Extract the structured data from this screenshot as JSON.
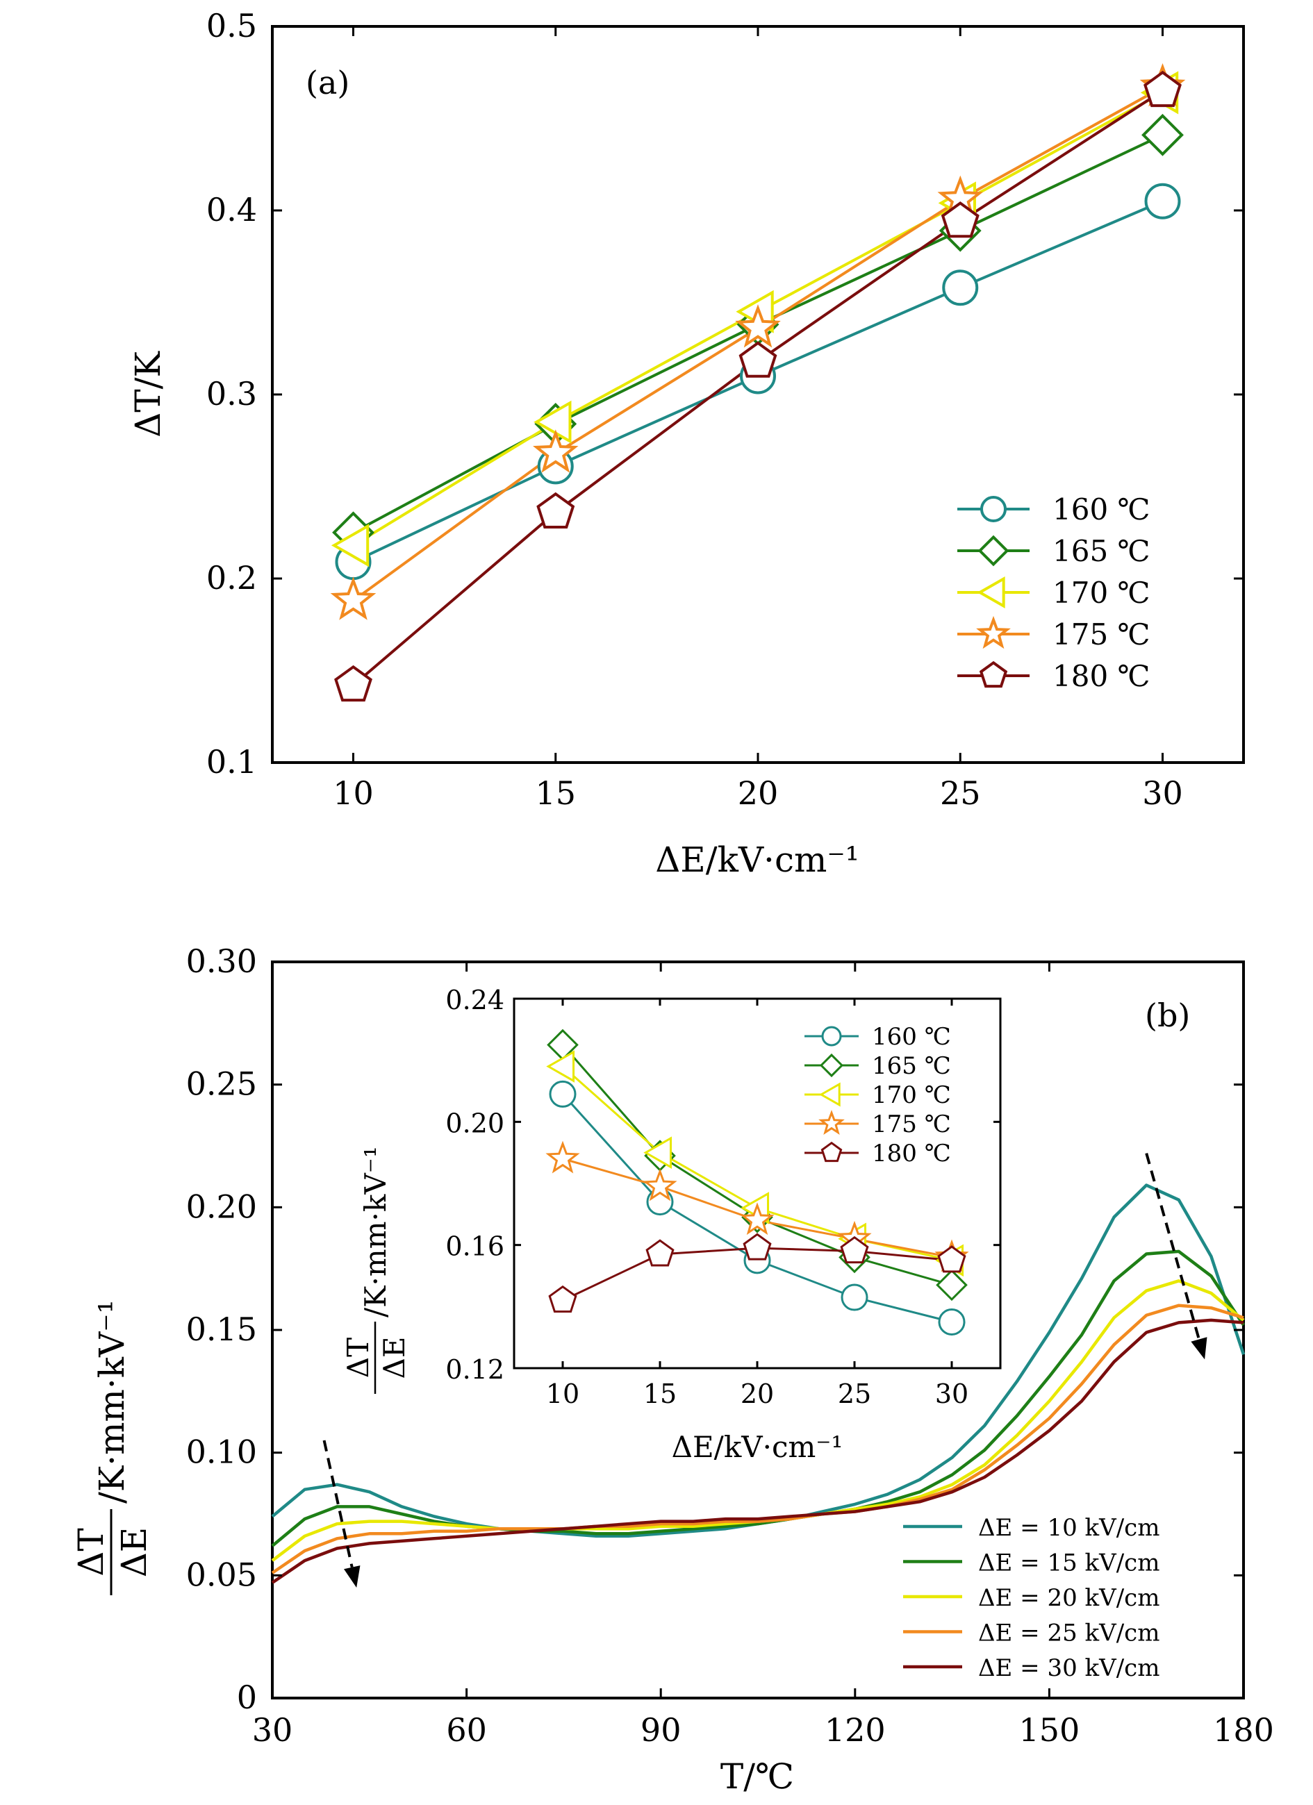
{
  "chart_data": [
    {
      "type": "line",
      "panel_label": "(a)",
      "xlabel": "ΔE/kV·cm⁻¹",
      "ylabel": "ΔT/K",
      "xlim": [
        8,
        32
      ],
      "ylim": [
        0.1,
        0.5
      ],
      "xticks": [
        "10",
        "15",
        "20",
        "25",
        "30"
      ],
      "yticks": [
        "0.1",
        "0.2",
        "0.3",
        "0.4",
        "0.5"
      ],
      "x": [
        10,
        15,
        20,
        25,
        30
      ],
      "legend_position": "lower-right",
      "series": [
        {
          "name": "160 ℃",
          "marker": "circle",
          "color": "#1f8a87",
          "values": [
            0.209,
            0.261,
            0.31,
            0.358,
            0.405
          ]
        },
        {
          "name": "165 ℃",
          "marker": "diamond",
          "color": "#1e7f16",
          "values": [
            0.225,
            0.284,
            0.338,
            0.389,
            0.441
          ]
        },
        {
          "name": "170 ℃",
          "marker": "triangle-left",
          "color": "#e8e800",
          "values": [
            0.218,
            0.285,
            0.345,
            0.404,
            0.464
          ]
        },
        {
          "name": "175 ℃",
          "marker": "star",
          "color": "#f28a1f",
          "values": [
            0.188,
            0.268,
            0.336,
            0.406,
            0.467
          ]
        },
        {
          "name": "180 ℃",
          "marker": "pentagon",
          "color": "#7a0d0d",
          "values": [
            0.142,
            0.236,
            0.318,
            0.394,
            0.465
          ]
        }
      ]
    },
    {
      "type": "line",
      "panel_label": "(b)",
      "xlabel": "T/℃",
      "ylabel_num": "ΔT",
      "ylabel_den": "ΔE",
      "ylabel_unit": "/K·mm·kV⁻¹",
      "xlim": [
        30,
        180
      ],
      "ylim": [
        0,
        0.3
      ],
      "xticks": [
        "30",
        "60",
        "90",
        "120",
        "150",
        "180"
      ],
      "yticks": [
        "0",
        "0.05",
        "0.10",
        "0.15",
        "0.20",
        "0.25",
        "0.30"
      ],
      "legend_position": "lower-right",
      "x": [
        30,
        35,
        40,
        45,
        50,
        55,
        60,
        65,
        70,
        75,
        80,
        85,
        90,
        95,
        100,
        105,
        110,
        115,
        120,
        125,
        130,
        135,
        140,
        145,
        150,
        155,
        160,
        165,
        170,
        175,
        180
      ],
      "series": [
        {
          "name": "ΔE = 10 kV/cm",
          "color": "#1f8a87",
          "values": [
            0.074,
            0.085,
            0.087,
            0.084,
            0.078,
            0.074,
            0.071,
            0.069,
            0.068,
            0.067,
            0.066,
            0.066,
            0.067,
            0.068,
            0.069,
            0.071,
            0.073,
            0.076,
            0.079,
            0.083,
            0.089,
            0.098,
            0.111,
            0.129,
            0.149,
            0.171,
            0.196,
            0.209,
            0.203,
            0.18,
            0.14
          ]
        },
        {
          "name": "ΔE = 15 kV/cm",
          "color": "#1e7f16",
          "values": [
            0.062,
            0.073,
            0.078,
            0.078,
            0.075,
            0.072,
            0.07,
            0.069,
            0.068,
            0.068,
            0.067,
            0.067,
            0.068,
            0.069,
            0.07,
            0.071,
            0.073,
            0.075,
            0.077,
            0.08,
            0.084,
            0.091,
            0.101,
            0.115,
            0.131,
            0.148,
            0.17,
            0.181,
            0.182,
            0.172,
            0.152
          ]
        },
        {
          "name": "ΔE = 20 kV/cm",
          "color": "#e8e800",
          "values": [
            0.056,
            0.066,
            0.071,
            0.072,
            0.072,
            0.071,
            0.07,
            0.069,
            0.069,
            0.069,
            0.069,
            0.069,
            0.07,
            0.07,
            0.071,
            0.072,
            0.073,
            0.075,
            0.077,
            0.079,
            0.082,
            0.087,
            0.095,
            0.107,
            0.121,
            0.137,
            0.155,
            0.166,
            0.17,
            0.165,
            0.154
          ]
        },
        {
          "name": "ΔE = 25 kV/cm",
          "color": "#f28a1f",
          "values": [
            0.051,
            0.06,
            0.065,
            0.067,
            0.067,
            0.068,
            0.068,
            0.069,
            0.069,
            0.069,
            0.07,
            0.07,
            0.071,
            0.071,
            0.072,
            0.072,
            0.073,
            0.075,
            0.076,
            0.078,
            0.081,
            0.085,
            0.093,
            0.103,
            0.114,
            0.128,
            0.144,
            0.156,
            0.16,
            0.159,
            0.155
          ]
        },
        {
          "name": "ΔE = 30 kV/cm",
          "color": "#7a0d0d",
          "values": [
            0.047,
            0.056,
            0.061,
            0.063,
            0.064,
            0.065,
            0.066,
            0.067,
            0.068,
            0.069,
            0.07,
            0.071,
            0.072,
            0.072,
            0.073,
            0.073,
            0.074,
            0.075,
            0.076,
            0.078,
            0.08,
            0.084,
            0.09,
            0.099,
            0.109,
            0.121,
            0.137,
            0.149,
            0.153,
            0.154,
            0.153
          ]
        }
      ],
      "arrows": [
        {
          "from": [
            38,
            0.105
          ],
          "to": [
            43,
            0.045
          ]
        },
        {
          "from": [
            165,
            0.222
          ],
          "to": [
            174,
            0.138
          ]
        }
      ],
      "inset": {
        "xlabel": "ΔE/kV·cm⁻¹",
        "ylabel_num": "ΔT",
        "ylabel_den": "ΔE",
        "ylabel_unit": "/K·mm·kV⁻¹",
        "xlim": [
          7.5,
          32.5
        ],
        "ylim": [
          0.12,
          0.24
        ],
        "xticks": [
          "10",
          "15",
          "20",
          "25",
          "30"
        ],
        "yticks": [
          "0.12",
          "0.16",
          "0.20",
          "0.24"
        ],
        "x": [
          10,
          15,
          20,
          25,
          30
        ],
        "legend_position": "top-right",
        "series": [
          {
            "name": "160 ℃",
            "marker": "circle",
            "color": "#1f8a87",
            "values": [
              0.209,
              0.174,
              0.155,
              0.143,
              0.135
            ]
          },
          {
            "name": "165 ℃",
            "marker": "diamond",
            "color": "#1e7f16",
            "values": [
              0.225,
              0.189,
              0.169,
              0.156,
              0.147
            ]
          },
          {
            "name": "170 ℃",
            "marker": "triangle-left",
            "color": "#e8e800",
            "values": [
              0.218,
              0.19,
              0.172,
              0.162,
              0.155
            ]
          },
          {
            "name": "175 ℃",
            "marker": "star",
            "color": "#f28a1f",
            "values": [
              0.188,
              0.179,
              0.168,
              0.162,
              0.156
            ]
          },
          {
            "name": "180 ℃",
            "marker": "pentagon",
            "color": "#7a0d0d",
            "values": [
              0.142,
              0.157,
              0.159,
              0.158,
              0.155
            ]
          }
        ]
      }
    }
  ]
}
